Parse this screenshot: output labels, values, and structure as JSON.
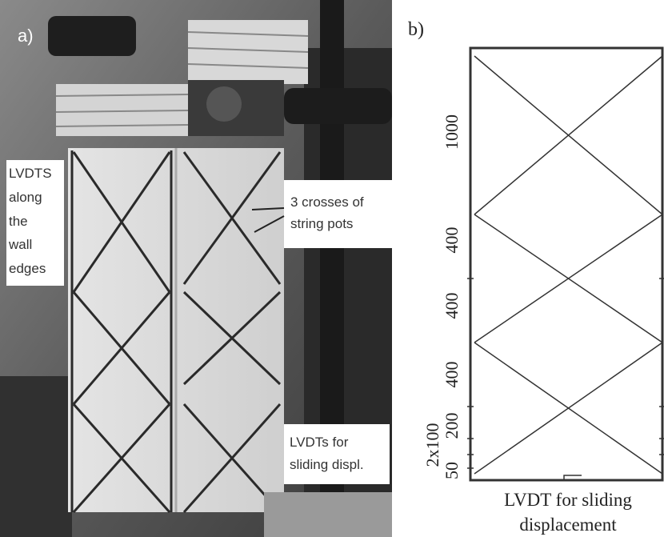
{
  "panel_a": {
    "label": "a)",
    "annotations": [
      {
        "lines": [
          "LVDTS",
          "along",
          "the",
          "wall",
          "edges"
        ]
      },
      {
        "lines": [
          "3 crosses of",
          "string pots"
        ]
      },
      {
        "lines": [
          "LVDTs for",
          "sliding displ."
        ]
      }
    ]
  },
  "panel_b": {
    "label": "b)",
    "dimensions": [
      "1000",
      "400",
      "400",
      "400",
      "200",
      "2x100",
      "50"
    ],
    "caption": [
      "LVDT for sliding",
      "displacement"
    ]
  }
}
